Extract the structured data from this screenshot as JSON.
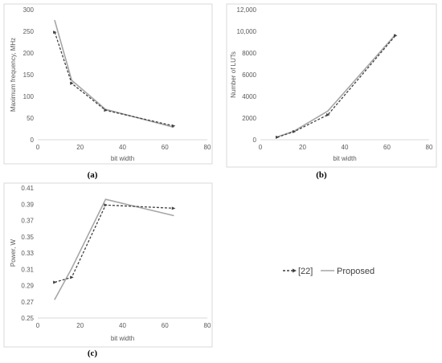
{
  "legend": {
    "series": [
      {
        "name": "[22]",
        "color": "#404040",
        "dash": true
      },
      {
        "name": "Proposed",
        "color": "#a6a6a6",
        "dash": false
      }
    ]
  },
  "chart_data": [
    {
      "type": "line",
      "panel_label": "(a)",
      "xlabel": "bit width",
      "ylabel": "Maximum frequency, MHz",
      "xlim": [
        0,
        80
      ],
      "ylim": [
        0,
        300
      ],
      "xticks": [
        "0",
        "20",
        "40",
        "60",
        "80"
      ],
      "yticks": [
        "0",
        "50",
        "100",
        "150",
        "200",
        "250",
        "300"
      ],
      "x": [
        8,
        16,
        32,
        64
      ],
      "series": [
        {
          "name": "[22]",
          "values": [
            248,
            130,
            68,
            32
          ]
        },
        {
          "name": "Proposed",
          "values": [
            275,
            137,
            70,
            29
          ]
        }
      ]
    },
    {
      "type": "line",
      "panel_label": "(b)",
      "xlabel": "bit width",
      "ylabel": "Number of LUTs",
      "xlim": [
        0,
        80
      ],
      "ylim": [
        0,
        12000
      ],
      "xticks": [
        "0",
        "20",
        "40",
        "60",
        "80"
      ],
      "yticks": [
        "0",
        "2000",
        "4000",
        "6000",
        "8000",
        "10,000",
        "12,000"
      ],
      "x": [
        8,
        16,
        32,
        64
      ],
      "series": [
        {
          "name": "[22]",
          "values": [
            230,
            750,
            2300,
            9600
          ]
        },
        {
          "name": "Proposed",
          "values": [
            260,
            800,
            2650,
            9700
          ]
        }
      ]
    },
    {
      "type": "line",
      "panel_label": "(c)",
      "xlabel": "bit width",
      "ylabel": "Power, W",
      "xlim": [
        0,
        80
      ],
      "ylim": [
        0.25,
        0.41
      ],
      "xticks": [
        "0",
        "20",
        "40",
        "60",
        "80"
      ],
      "yticks": [
        "0.25",
        "0.27",
        "0.29",
        "0.31",
        "0.33",
        "0.35",
        "0.37",
        "0.39",
        "0.41"
      ],
      "x": [
        8,
        16,
        32,
        64
      ],
      "series": [
        {
          "name": "[22]",
          "values": [
            0.294,
            0.3,
            0.389,
            0.385
          ]
        },
        {
          "name": "Proposed",
          "values": [
            0.273,
            0.311,
            0.396,
            0.376
          ]
        }
      ]
    }
  ]
}
